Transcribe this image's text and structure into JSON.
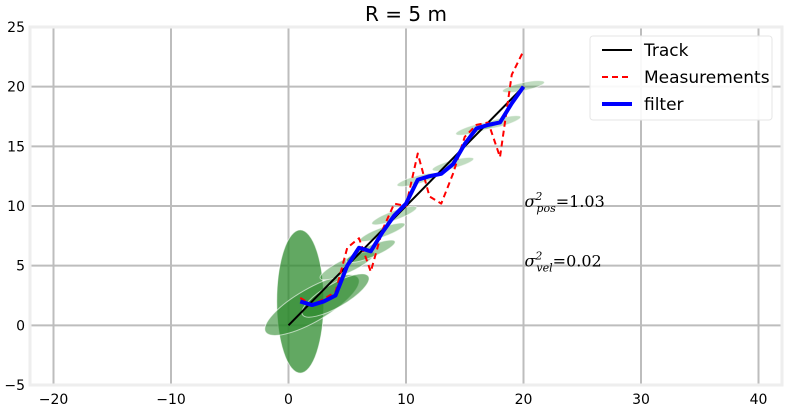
{
  "chart_data": {
    "type": "line",
    "title": "R = 5 m",
    "xlabel": "",
    "ylabel": "",
    "xlim": [
      -22,
      42
    ],
    "ylim": [
      -5,
      25
    ],
    "xticks": [
      -20,
      -10,
      0,
      10,
      20,
      30,
      40
    ],
    "yticks": [
      -5,
      0,
      5,
      10,
      15,
      20,
      25
    ],
    "xtick_labels": [
      "−20",
      "−10",
      "0",
      "10",
      "20",
      "30",
      "40"
    ],
    "ytick_labels": [
      "−5",
      "0",
      "5",
      "10",
      "15",
      "20",
      "25"
    ],
    "grid": true,
    "legend_position": "top-right",
    "series": [
      {
        "name": "Track",
        "color": "#000000",
        "style": "solid",
        "x": [
          0,
          20
        ],
        "y": [
          0,
          20
        ]
      },
      {
        "name": "Measurements",
        "color": "#ff0000",
        "style": "dashed",
        "x": [
          1,
          2,
          3,
          4,
          5,
          6,
          7,
          8,
          9,
          10,
          11,
          12,
          13,
          14,
          15,
          16,
          17,
          18,
          19,
          20
        ],
        "y": [
          2.3,
          1.7,
          2.2,
          2.8,
          6.5,
          7.3,
          4.5,
          8.0,
          10.2,
          10.0,
          14.4,
          10.8,
          10.2,
          12.7,
          15.8,
          16.8,
          17.0,
          14.1,
          21.0,
          23.0
        ]
      },
      {
        "name": "filter",
        "color": "#0000ff",
        "style": "solid",
        "x": [
          1,
          2,
          3,
          4,
          5,
          6,
          7,
          8,
          9,
          10,
          11,
          12,
          13,
          14,
          15,
          16,
          17,
          18,
          19,
          20
        ],
        "y": [
          2.0,
          1.7,
          2.0,
          2.5,
          5.0,
          6.5,
          6.2,
          7.8,
          9.2,
          10.2,
          12.2,
          12.5,
          12.7,
          13.5,
          15.2,
          16.5,
          16.8,
          17.0,
          18.6,
          20.0
        ]
      }
    ],
    "covariance_ellipses": {
      "color": "#2e8b2e",
      "items": [
        {
          "cx": 1,
          "cy": 2.0,
          "rx": 2.0,
          "ry": 6.0,
          "angle": 0,
          "opacity": 0.75
        },
        {
          "cx": 2,
          "cy": 1.7,
          "rx": 1.4,
          "ry": 4.5,
          "angle": 60,
          "opacity": 0.6
        },
        {
          "cx": 4,
          "cy": 2.5,
          "rx": 1.0,
          "ry": 3.2,
          "angle": 60,
          "opacity": 0.6
        },
        {
          "cx": 5,
          "cy": 5.0,
          "rx": 0.6,
          "ry": 2.5,
          "angle": 65,
          "opacity": 0.45
        },
        {
          "cx": 7,
          "cy": 6.2,
          "rx": 0.5,
          "ry": 2.2,
          "angle": 68,
          "opacity": 0.45
        },
        {
          "cx": 8,
          "cy": 7.8,
          "rx": 0.4,
          "ry": 2.0,
          "angle": 70,
          "opacity": 0.4
        },
        {
          "cx": 9,
          "cy": 9.2,
          "rx": 0.4,
          "ry": 2.0,
          "angle": 70,
          "opacity": 0.35
        },
        {
          "cx": 11,
          "cy": 12.2,
          "rx": 0.35,
          "ry": 1.8,
          "angle": 75,
          "opacity": 0.3
        },
        {
          "cx": 14,
          "cy": 13.5,
          "rx": 0.35,
          "ry": 1.8,
          "angle": 75,
          "opacity": 0.3
        },
        {
          "cx": 16,
          "cy": 16.5,
          "rx": 0.35,
          "ry": 1.8,
          "angle": 75,
          "opacity": 0.3
        },
        {
          "cx": 18,
          "cy": 17.0,
          "rx": 0.35,
          "ry": 1.8,
          "angle": 75,
          "opacity": 0.3
        },
        {
          "cx": 20,
          "cy": 20.0,
          "rx": 0.35,
          "ry": 1.8,
          "angle": 78,
          "opacity": 0.3
        }
      ]
    },
    "annotations": [
      {
        "symbol": "σ",
        "superscript": "2",
        "subscript": "pos",
        "text": "=1.03",
        "x": 20,
        "y": 10
      },
      {
        "symbol": "σ",
        "superscript": "2",
        "subscript": "vel",
        "text": "=0.02",
        "x": 20,
        "y": 5
      }
    ]
  }
}
